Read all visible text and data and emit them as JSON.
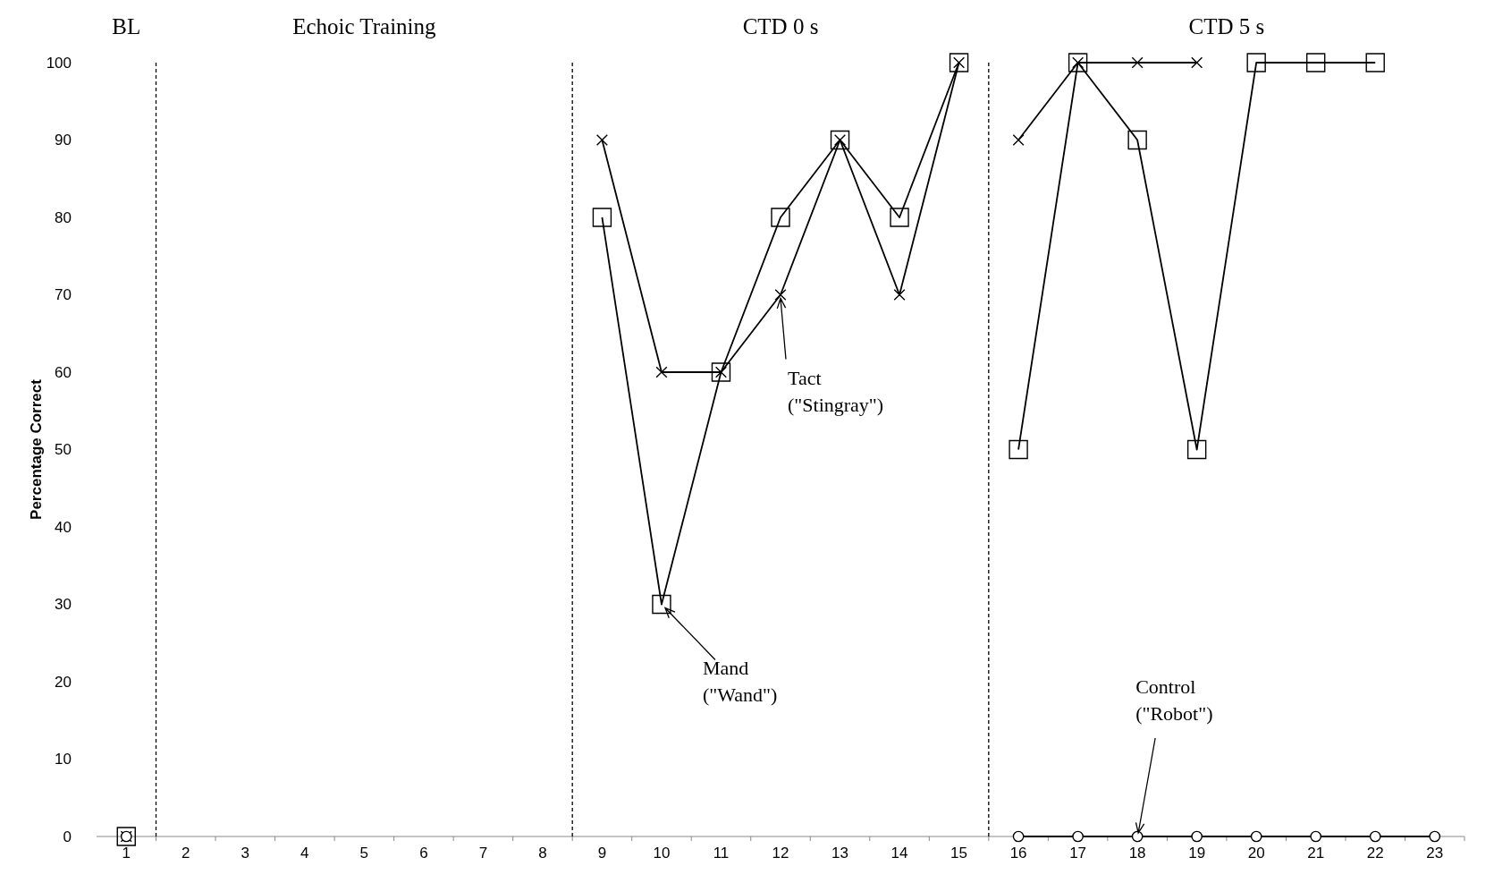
{
  "chart_data": {
    "type": "line",
    "ylabel": "Percentage Correct",
    "x": [
      1,
      2,
      3,
      4,
      5,
      6,
      7,
      8,
      9,
      10,
      11,
      12,
      13,
      14,
      15,
      16,
      17,
      18,
      19,
      20,
      21,
      22,
      23
    ],
    "xlim": [
      0.5,
      23.5
    ],
    "xticks": [
      1,
      2,
      3,
      4,
      5,
      6,
      7,
      8,
      9,
      10,
      11,
      12,
      13,
      14,
      15,
      16,
      17,
      18,
      19,
      20,
      21,
      22,
      23
    ],
    "ylim": [
      0,
      100
    ],
    "yticks": [
      0,
      10,
      20,
      30,
      40,
      50,
      60,
      70,
      80,
      90,
      100
    ],
    "grid": false,
    "line_style": "solid",
    "series": [
      {
        "color": "#000000",
        "marker": "square",
        "values": [
          0,
          null,
          null,
          null,
          null,
          null,
          null,
          null,
          80,
          30,
          60,
          80,
          90,
          80,
          100,
          null,
          null,
          null,
          null,
          null,
          null,
          null,
          null
        ]
      },
      {
        "color": "#000000",
        "marker": "square",
        "values": [
          null,
          null,
          null,
          null,
          null,
          null,
          null,
          null,
          null,
          null,
          null,
          null,
          null,
          null,
          null,
          50,
          100,
          90,
          50,
          100,
          100,
          100,
          null
        ]
      },
      {
        "color": "#000000",
        "marker": "cross",
        "values": [
          0,
          null,
          null,
          null,
          null,
          null,
          null,
          null,
          90,
          60,
          60,
          70,
          90,
          70,
          100,
          null,
          null,
          null,
          null,
          null,
          null,
          null,
          null
        ]
      },
      {
        "color": "#000000",
        "marker": "cross",
        "values": [
          null,
          null,
          null,
          null,
          null,
          null,
          null,
          null,
          null,
          null,
          null,
          null,
          null,
          null,
          null,
          90,
          100,
          100,
          100,
          null,
          null,
          null,
          null
        ]
      },
      {
        "color": "#000000",
        "marker": "circle",
        "values": [
          0,
          null,
          null,
          null,
          null,
          null,
          null,
          null,
          null,
          null,
          null,
          null,
          null,
          null,
          null,
          0,
          0,
          0,
          0,
          0,
          0,
          0,
          0
        ]
      }
    ],
    "ref_lines": [
      {
        "axis": "x",
        "value": 1.5,
        "line_style": "dashed",
        "color": "#000000"
      },
      {
        "axis": "x",
        "value": 8.5,
        "line_style": "dashed",
        "color": "#000000"
      },
      {
        "axis": "x",
        "value": 15.5,
        "line_style": "dashed",
        "color": "#000000"
      }
    ],
    "annotations": [
      "BL",
      "Echoic Training",
      "CTD 0 s",
      "CTD 5 s",
      {
        "text": "Mand\n(\"Wand\")",
        "x": 10,
        "y": 30
      },
      {
        "text": "Tact\n(\"Stingray\")",
        "x": 12,
        "y": 70
      },
      {
        "text": "Control\n(\"Robot\")",
        "x": 18,
        "y": 0
      }
    ]
  }
}
